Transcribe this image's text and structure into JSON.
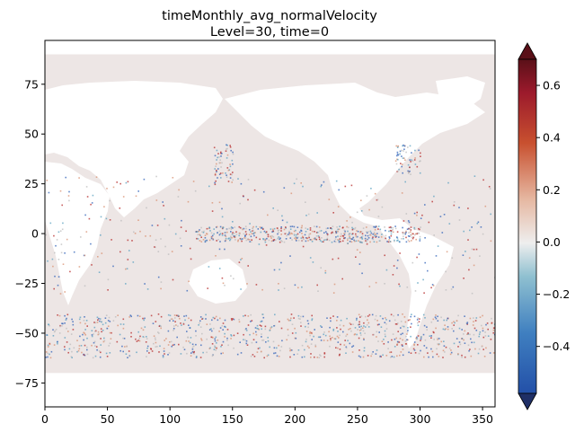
{
  "chart_data": {
    "type": "heatmap",
    "title": "timeMonthly_avg_normalVelocity",
    "subtitle": "Level=30, time=0",
    "xlabel": "",
    "ylabel": "",
    "xlim": [
      0,
      360
    ],
    "ylim": [
      -87,
      97
    ],
    "x_ticks": [
      0,
      50,
      100,
      150,
      200,
      250,
      300,
      350
    ],
    "y_ticks": [
      -75,
      -50,
      -25,
      0,
      25,
      50,
      75
    ],
    "colorbar": {
      "range": [
        -0.58,
        0.7
      ],
      "ticks": [
        -0.4,
        -0.2,
        0.0,
        0.2,
        0.4,
        0.6
      ],
      "tick_labels": [
        "−0.4",
        "−0.2",
        "0.0",
        "0.2",
        "0.4",
        "0.6"
      ],
      "extend": "both",
      "colors": {
        "min": "#1f2f66",
        "neg_strong": "#2f62b8",
        "neg_mid": "#5aa0c0",
        "zero": "#eeeeee",
        "pos_mid": "#d89070",
        "pos_strong": "#b52a2a",
        "max": "#3c0d12"
      }
    },
    "ocean_background_value": 0.0,
    "ocean_color": "#ede6e5",
    "land_color": "#ffffff",
    "grid": false
  }
}
